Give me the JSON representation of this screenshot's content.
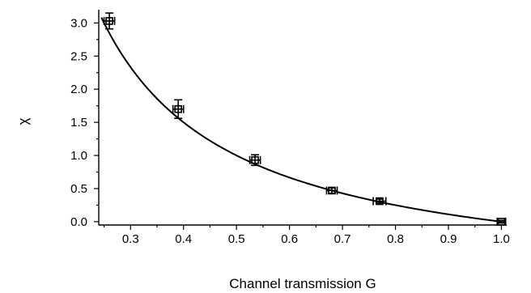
{
  "chart_data": {
    "type": "scatter",
    "xlabel": "Channel transmission G",
    "ylabel": "χ",
    "xlim": [
      0.24,
      1.01
    ],
    "ylim": [
      -0.05,
      3.2
    ],
    "x_ticks": [
      "0.3",
      "0.4",
      "0.5",
      "0.6",
      "0.7",
      "0.8",
      "0.9",
      "1.0"
    ],
    "y_ticks": [
      "0.0",
      "0.5",
      "1.0",
      "1.5",
      "2.0",
      "2.5",
      "3.0"
    ],
    "grid": false,
    "series": [
      {
        "type": "scatter",
        "marker": "open-square",
        "points": [
          {
            "x": 0.26,
            "y": 3.03,
            "xerr": 0.01,
            "yerr": 0.12
          },
          {
            "x": 0.39,
            "y": 1.7,
            "xerr": 0.01,
            "yerr": 0.14
          },
          {
            "x": 0.535,
            "y": 0.93,
            "xerr": 0.01,
            "yerr": 0.08
          },
          {
            "x": 0.68,
            "y": 0.47,
            "xerr": 0.01,
            "yerr": 0.04
          },
          {
            "x": 0.77,
            "y": 0.31,
            "xerr": 0.012,
            "yerr": 0.03
          },
          {
            "x": 1.0,
            "y": 0.0,
            "xerr": 0.008,
            "yerr": 0.02
          }
        ]
      },
      {
        "type": "line",
        "function": "(1 - x) / x",
        "x_range": [
          0.245,
          1.0
        ]
      }
    ]
  }
}
